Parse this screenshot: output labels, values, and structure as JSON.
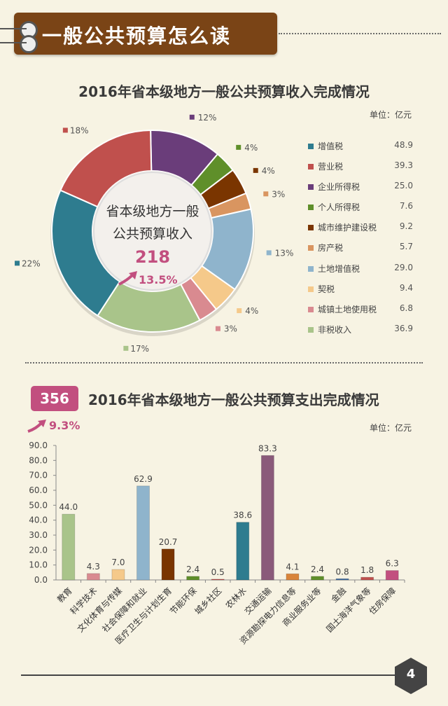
{
  "header": {
    "title": "一般公共预算怎么读"
  },
  "income": {
    "title": "2016年省本级地方一般公共预算收入完成情况",
    "unit": "单位：亿元",
    "center_line1": "省本级地方一般",
    "center_line2": "公共预算收入",
    "total": "218",
    "growth": "13.5%"
  },
  "expense": {
    "badge": "356",
    "title": "2016年省本级地方一般公共预算支出完成情况",
    "growth": "9.3%",
    "unit": "单位：亿元"
  },
  "page_number": "4",
  "chart_data": [
    {
      "type": "pie",
      "title": "2016年省本级地方一般公共预算收入完成情况",
      "slices": [
        {
          "name": "增值税",
          "value": 48.9,
          "pct": "22%",
          "color": "#2e7c8f"
        },
        {
          "name": "营业税",
          "value": 39.3,
          "pct": "18%",
          "color": "#c0504d"
        },
        {
          "name": "企业所得税",
          "value": 25.0,
          "pct": "12%",
          "color": "#6a3d7a"
        },
        {
          "name": "个人所得税",
          "value": 7.6,
          "pct": "4%",
          "color": "#5f8f2a"
        },
        {
          "name": "城市维护建设税",
          "value": 9.2,
          "pct": "4%",
          "color": "#7a3500"
        },
        {
          "name": "房产税",
          "value": 5.7,
          "pct": "3%",
          "color": "#d99560"
        },
        {
          "name": "土地增值税",
          "value": 29.0,
          "pct": "13%",
          "color": "#8fb4cc"
        },
        {
          "name": "契税",
          "value": 9.4,
          "pct": "4%",
          "color": "#f5c98a"
        },
        {
          "name": "城镇土地使用税",
          "value": 6.8,
          "pct": "3%",
          "color": "#d98a90"
        },
        {
          "name": "非税收入",
          "value": 36.9,
          "pct": "17%",
          "color": "#a9c48a"
        }
      ]
    },
    {
      "type": "bar",
      "title": "2016年省本级地方一般公共预算支出完成情况",
      "categories": [
        "教育",
        "科学技术",
        "文化体育与传媒",
        "社会保障和就业",
        "医疗卫生与计划生育",
        "节能环保",
        "城乡社区",
        "农林水",
        "交通运输",
        "资源勘探电力信息等",
        "商业服务业等",
        "金融",
        "国土海洋气象等",
        "住房保障"
      ],
      "values": [
        44.0,
        4.3,
        7.0,
        62.9,
        20.7,
        2.4,
        0.5,
        38.6,
        83.3,
        4.1,
        2.4,
        0.8,
        1.8,
        6.3
      ],
      "value_labels": [
        "44.0",
        "4.3",
        "7.0",
        "62.9",
        "20.7",
        "2.4",
        "0.5",
        "38.6",
        "83.3",
        "4.1",
        "2.4",
        "0.8",
        "1.8",
        "6.3"
      ],
      "colors": [
        "#a9c48a",
        "#d98a90",
        "#f5c98a",
        "#8fb4cc",
        "#7a3500",
        "#5f8f2a",
        "#c0504d",
        "#2e7c8f",
        "#8a5a7a",
        "#d9843a",
        "#5f8f2a",
        "#3c6aa0",
        "#c0504d",
        "#c24f7f"
      ],
      "yticks": [
        "90.0",
        "80.0",
        "70.0",
        "60.0",
        "50.0",
        "40.0",
        "30.0",
        "20.0",
        "10.0",
        "0.0"
      ],
      "ylim": [
        0,
        90
      ]
    }
  ]
}
